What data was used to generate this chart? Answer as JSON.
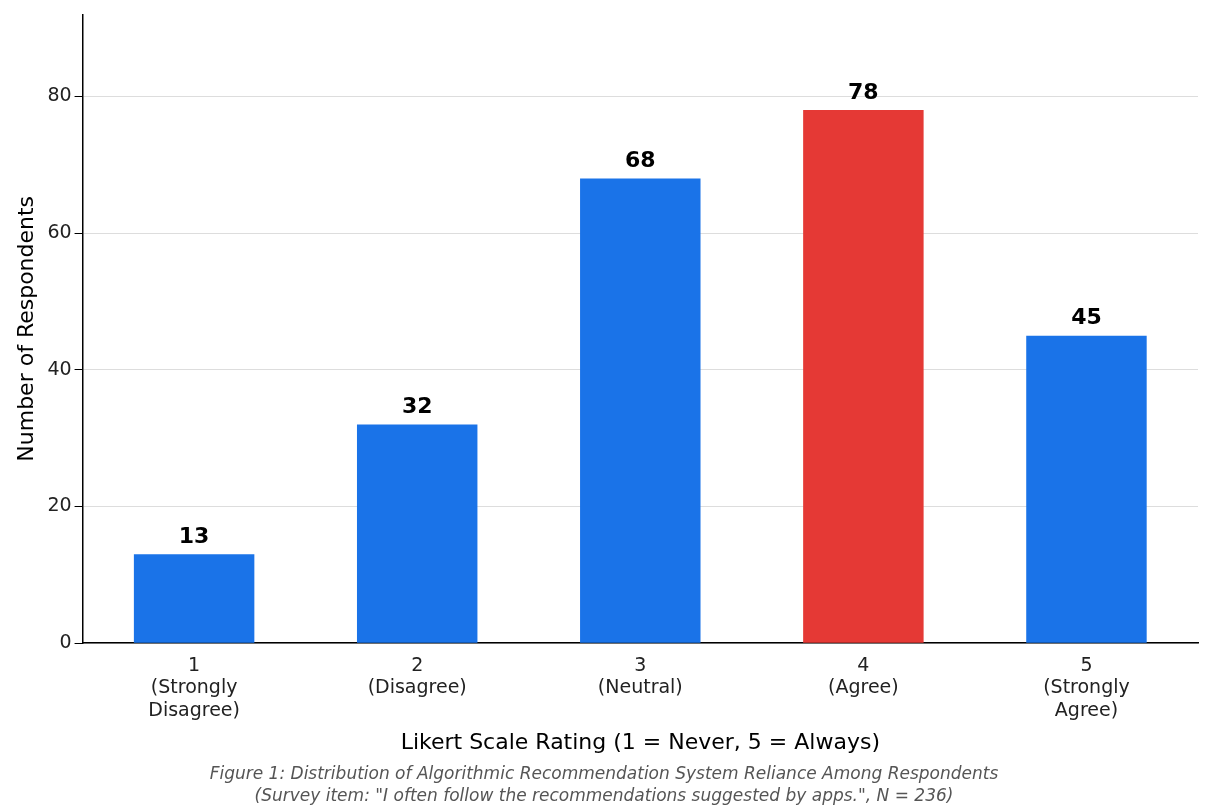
{
  "chart_data": {
    "type": "bar",
    "categories": [
      "1\n(Strongly\nDisagree)",
      "2\n(Disagree)",
      "3\n(Neutral)",
      "4\n(Agree)",
      "5\n(Strongly\nAgree)"
    ],
    "values": [
      13,
      32,
      68,
      78,
      45
    ],
    "colors": [
      "#1a73e8",
      "#1a73e8",
      "#1a73e8",
      "#e53935",
      "#1a73e8"
    ],
    "xlabel": "Likert Scale Rating (1 = Never, 5 = Always)",
    "ylabel": "Number of Respondents",
    "ylim": [
      0,
      92
    ],
    "yticks": [
      0,
      20,
      40,
      60,
      80
    ],
    "grid": "y",
    "data_labels": true,
    "annotations": [
      "Figure 1: Distribution of Algorithmic Recommendation System Reliance Among Respondents",
      "(Survey item: \"I often follow the recommendations suggested by apps.\", N = 236)"
    ]
  }
}
